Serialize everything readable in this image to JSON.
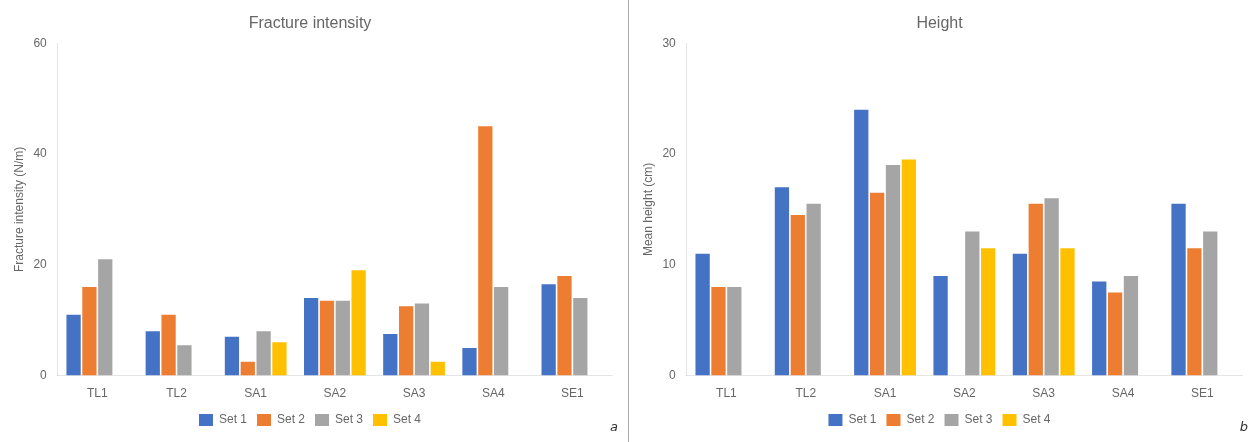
{
  "chart_data": [
    {
      "type": "bar",
      "title": "Fracture intensity",
      "ylabel": "Fracture intensity (N/m)",
      "categories": [
        "TL1",
        "TL2",
        "SA1",
        "SA2",
        "SA3",
        "SA4",
        "SE1"
      ],
      "series": [
        {
          "name": "Set 1",
          "color": "#4472C4",
          "values": [
            11,
            8,
            7,
            14,
            7.5,
            5,
            16.5
          ]
        },
        {
          "name": "Set 2",
          "color": "#ED7D31",
          "values": [
            16,
            11,
            2.5,
            13.5,
            12.5,
            45,
            18
          ]
        },
        {
          "name": "Set 3",
          "color": "#A5A5A5",
          "values": [
            21,
            5.5,
            8,
            13.5,
            13,
            16,
            14
          ]
        },
        {
          "name": "Set 4",
          "color": "#FFC000",
          "values": [
            0,
            0,
            6,
            19,
            2.5,
            0,
            0
          ]
        }
      ],
      "ylim": [
        0,
        60
      ],
      "yticks": [
        0,
        20,
        40,
        60
      ],
      "grid": false,
      "legend": "bottom",
      "annotation": "a"
    },
    {
      "type": "bar",
      "title": "Height",
      "ylabel": "Mean height (cm)",
      "categories": [
        "TL1",
        "TL2",
        "SA1",
        "SA2",
        "SA3",
        "SA4",
        "SE1"
      ],
      "series": [
        {
          "name": "Set 1",
          "color": "#4472C4",
          "values": [
            11,
            17,
            24,
            9,
            11,
            8.5,
            15.5
          ]
        },
        {
          "name": "Set 2",
          "color": "#ED7D31",
          "values": [
            8,
            14.5,
            16.5,
            0,
            15.5,
            7.5,
            11.5
          ]
        },
        {
          "name": "Set 3",
          "color": "#A5A5A5",
          "values": [
            8,
            15.5,
            19,
            13,
            16,
            9,
            13
          ]
        },
        {
          "name": "Set 4",
          "color": "#FFC000",
          "values": [
            0,
            0,
            19.5,
            11.5,
            11.5,
            0,
            0
          ]
        }
      ],
      "ylim": [
        0,
        30
      ],
      "yticks": [
        0,
        10,
        20,
        30
      ],
      "grid": false,
      "legend": "bottom",
      "annotation": "b"
    }
  ]
}
